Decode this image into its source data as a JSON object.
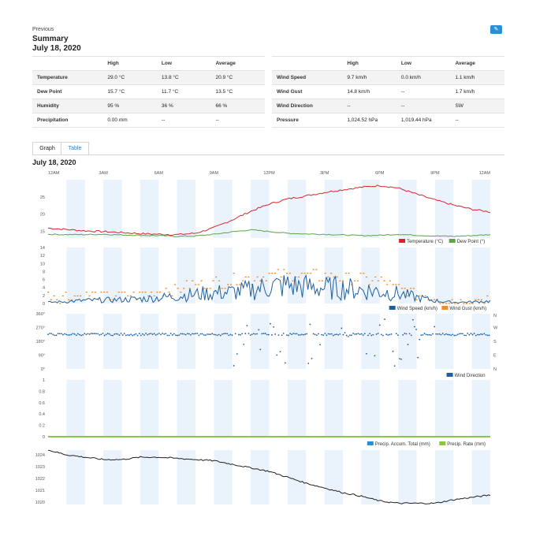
{
  "header": {
    "previous_label": "Previous",
    "title": "Summary",
    "date": "July 18, 2020",
    "edit_icon": "pencil-icon"
  },
  "summary_left": {
    "columns": [
      "",
      "High",
      "Low",
      "Average"
    ],
    "rows": [
      [
        "Temperature",
        "29.0 °C",
        "13.8 °C",
        "20.9 °C"
      ],
      [
        "Dew Point",
        "15.7 °C",
        "11.7 °C",
        "13.5 °C"
      ],
      [
        "Humidity",
        "95 %",
        "36 %",
        "66 %"
      ],
      [
        "Precipitation",
        "0.00 mm",
        "--",
        "--"
      ]
    ]
  },
  "summary_right": {
    "columns": [
      "",
      "High",
      "Low",
      "Average"
    ],
    "rows": [
      [
        "Wind Speed",
        "9.7 km/h",
        "0.0 km/h",
        "1.1 km/h"
      ],
      [
        "Wind Gust",
        "14.8 km/h",
        "--",
        "1.7 km/h"
      ],
      [
        "Wind Direction",
        "--",
        "--",
        "SW"
      ],
      [
        "Pressure",
        "1,024.52 hPa",
        "1,019.44 hPa",
        "--"
      ]
    ]
  },
  "tabs": [
    {
      "label": "Graph",
      "active": true
    },
    {
      "label": "Table",
      "active": false
    }
  ],
  "chart_date": "July 18, 2020",
  "colors": {
    "temperature": "#d9242b",
    "dew_point": "#5aa744",
    "wind_speed": "#1f5f9c",
    "wind_gust": "#f28c28",
    "wind_direction": "#1f5f9c",
    "precip_accum": "#2a8fd4",
    "precip_rate": "#8cc63f",
    "pressure": "#222222",
    "band": "#eaf2fb"
  },
  "chart_data": [
    {
      "type": "line",
      "x_ticks": [
        "12AM",
        "3AM",
        "6AM",
        "9AM",
        "12PM",
        "3PM",
        "6PM",
        "9PM",
        "12AM"
      ],
      "y_ticks": [
        "25",
        "20",
        "15"
      ],
      "ylim": [
        13,
        30
      ],
      "x_hours": [
        0,
        1,
        2,
        3,
        4,
        5,
        6,
        7,
        8,
        9,
        10,
        11,
        12,
        13,
        14,
        15,
        16,
        17,
        18,
        19,
        20,
        21,
        22,
        23,
        24
      ],
      "series": [
        {
          "name": "Temperature (°C)",
          "values": [
            15.9,
            15.5,
            15.1,
            14.9,
            14.6,
            14.3,
            14.1,
            14.0,
            14.4,
            16.0,
            18.3,
            20.8,
            22.9,
            24.4,
            25.3,
            26.3,
            27.1,
            27.8,
            28.3,
            27.6,
            25.8,
            24.1,
            22.6,
            21.4,
            20.6
          ]
        },
        {
          "name": "Dew Point (°)",
          "values": [
            14.1,
            14.0,
            14.0,
            14.1,
            13.9,
            13.8,
            13.7,
            13.5,
            13.6,
            14.1,
            14.8,
            15.4,
            14.9,
            14.4,
            14.2,
            14.1,
            13.9,
            13.7,
            13.8,
            14.1,
            13.8,
            13.6,
            13.5,
            13.7,
            14.0
          ]
        }
      ]
    },
    {
      "type": "line",
      "y_ticks": [
        "14",
        "12",
        "10",
        "8",
        "6",
        "4",
        "2",
        "0"
      ],
      "ylim": [
        0,
        14.8
      ],
      "x_hours": [
        0,
        1,
        2,
        3,
        4,
        5,
        6,
        7,
        8,
        9,
        10,
        11,
        12,
        13,
        14,
        15,
        16,
        17,
        18,
        19,
        20,
        21,
        22,
        23,
        24
      ],
      "series": [
        {
          "name": "Wind Speed (km/h)",
          "values": [
            0.3,
            0.5,
            0.8,
            0.9,
            1.0,
            1.2,
            1.5,
            2.0,
            2.4,
            2.8,
            3.0,
            3.6,
            4.5,
            4.8,
            4.4,
            4.1,
            4.0,
            3.6,
            3.2,
            2.6,
            1.6,
            0.7,
            0.3,
            0.4,
            0.6
          ]
        },
        {
          "name": "Wind Gust (km/h)",
          "values": [
            1.8,
            2.0,
            2.0,
            2.0,
            2.0,
            2.5,
            3.3,
            4.0,
            5.0,
            5.5,
            6.0,
            6.6,
            7.5,
            7.8,
            7.5,
            7.2,
            7.0,
            6.6,
            5.8,
            4.2,
            2.6,
            1.5,
            0.8,
            1.0,
            1.5
          ]
        }
      ]
    },
    {
      "type": "scatter",
      "y_ticks": [
        "360°",
        "270°",
        "180°",
        "90°",
        "0°"
      ],
      "right_ticks": [
        "N",
        "W",
        "S",
        "E",
        "N"
      ],
      "ylim": [
        0,
        360
      ],
      "series": [
        {
          "name": "Wind Direction",
          "typical_value": 225
        }
      ]
    },
    {
      "type": "line",
      "y_ticks": [
        "1",
        "0.8",
        "0.6",
        "0.4",
        "0.2",
        "0"
      ],
      "ylim": [
        0,
        1
      ],
      "series": [
        {
          "name": "Precip. Accum. Total (mm)",
          "values": [
            0,
            0
          ]
        },
        {
          "name": "Precip. Rate (mm)",
          "values": [
            0,
            0
          ]
        }
      ]
    },
    {
      "type": "line",
      "y_ticks": [
        "1024",
        "1023",
        "1022",
        "1021",
        "1020"
      ],
      "ylim": [
        1019.8,
        1024.4
      ],
      "x_hours": [
        0,
        1,
        2,
        3,
        4,
        5,
        6,
        7,
        8,
        9,
        10,
        11,
        12,
        13,
        14,
        15,
        16,
        17,
        18,
        19,
        20,
        21,
        22,
        23,
        24
      ],
      "series": [
        {
          "name": "Pressure",
          "values": [
            1024.4,
            1024.0,
            1023.8,
            1023.6,
            1023.6,
            1023.8,
            1023.8,
            1023.7,
            1023.6,
            1023.5,
            1023.2,
            1022.9,
            1022.6,
            1022.1,
            1021.6,
            1021.2,
            1020.8,
            1020.5,
            1020.1,
            1019.9,
            1019.9,
            1019.9,
            1020.2,
            1020.4,
            1020.6
          ]
        }
      ]
    }
  ]
}
